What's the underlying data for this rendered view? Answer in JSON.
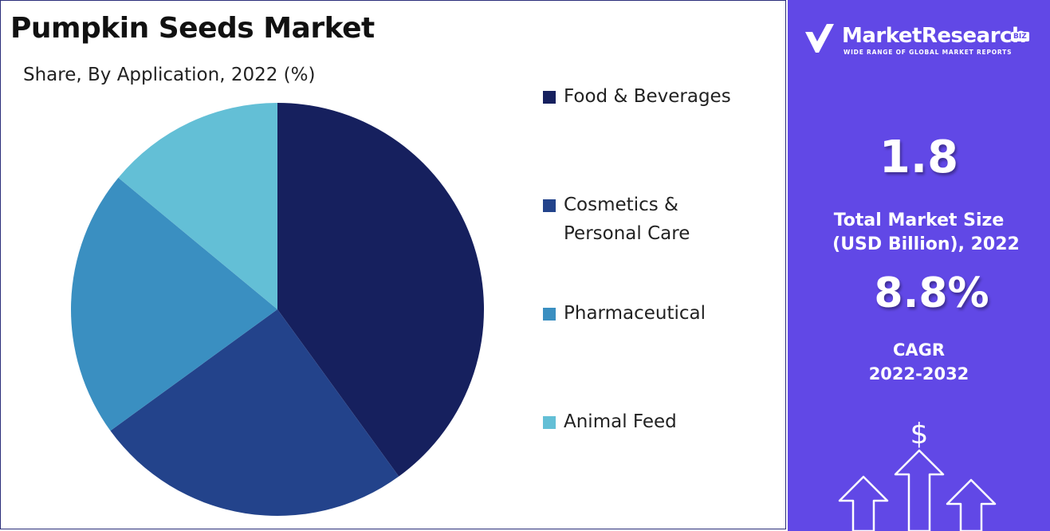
{
  "title": "Pumpkin Seeds Market",
  "subtitle": "Share, By Application, 2022 (%)",
  "brand": {
    "name": "MarketResearch",
    "badge": "BIZ",
    "tagline": "WIDE RANGE OF GLOBAL MARKET REPORTS",
    "color": "#6148e6"
  },
  "kpis": {
    "market_size_value": "1.8",
    "market_size_label_line1": "Total Market Size",
    "market_size_label_line2": "(USD Billion), 2022",
    "cagr_value": "8.8%",
    "cagr_label_line1": "CAGR",
    "cagr_label_line2": "2022-2032"
  },
  "icons": {
    "logo": "checkmark-logo-icon",
    "currency": "dollar-sign-icon",
    "growth": "up-arrows-icon",
    "dollar_glyph": "$"
  },
  "chart_data": {
    "type": "pie",
    "title": "Pumpkin Seeds Market",
    "subtitle": "Share, By Application, 2022 (%)",
    "legend_position": "right",
    "start_angle_deg": 0,
    "direction": "clockwise",
    "categories": [
      "Food & Beverages",
      "Cosmetics & Personal Care",
      "Pharmaceutical",
      "Animal Feed"
    ],
    "legend_labels": [
      [
        "Food & Beverages"
      ],
      [
        "Cosmetics &",
        "Personal Care"
      ],
      [
        "Pharmaceutical"
      ],
      [
        "Animal Feed"
      ]
    ],
    "values": [
      40,
      25,
      21,
      14
    ],
    "colors": [
      "#16205e",
      "#23438b",
      "#3a8fc1",
      "#63bfd6"
    ]
  }
}
